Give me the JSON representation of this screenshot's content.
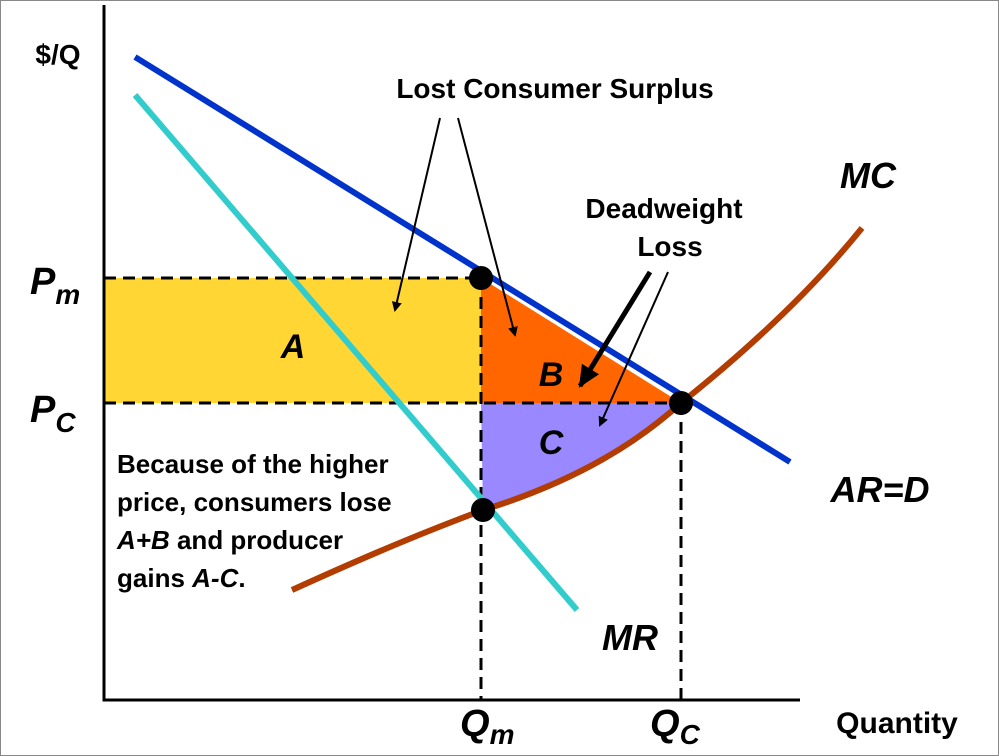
{
  "axes": {
    "y_label": "$/Q",
    "x_label": "Quantity"
  },
  "curves": {
    "mc": "MC",
    "demand": "AR=D",
    "mr": "MR"
  },
  "prices": [
    {
      "symbol": "P",
      "subscript": "m"
    },
    {
      "symbol": "P",
      "subscript": "C"
    }
  ],
  "quantities": [
    {
      "symbol": "Q",
      "subscript": "m"
    },
    {
      "symbol": "Q",
      "subscript": "C"
    }
  ],
  "areas": [
    "A",
    "B",
    "C"
  ],
  "annotations": {
    "lost_consumer_surplus": "Lost Consumer Surplus",
    "deadweight_loss": [
      "Deadweight",
      "Loss"
    ]
  },
  "note": {
    "lines": [
      [
        {
          "text": "Because of the higher",
          "italic": false
        }
      ],
      [
        {
          "text": "price, consumers lose",
          "italic": false
        }
      ],
      [
        {
          "text": "A+B",
          "italic": true
        },
        {
          "text": " and producer",
          "italic": false
        }
      ],
      [
        {
          "text": "gains ",
          "italic": false
        },
        {
          "text": "A-C",
          "italic": true
        },
        {
          "text": ".",
          "italic": false
        }
      ]
    ]
  }
}
